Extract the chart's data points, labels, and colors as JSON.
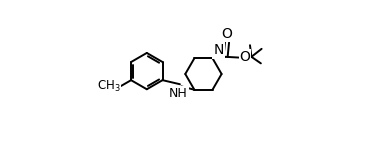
{
  "background_color": "#ffffff",
  "line_color": "#000000",
  "line_width": 1.4,
  "font_size_atom": 9,
  "figsize": [
    3.88,
    1.48
  ],
  "dpi": 100,
  "xlim": [
    0.0,
    1.0
  ],
  "ylim": [
    0.0,
    1.0
  ]
}
